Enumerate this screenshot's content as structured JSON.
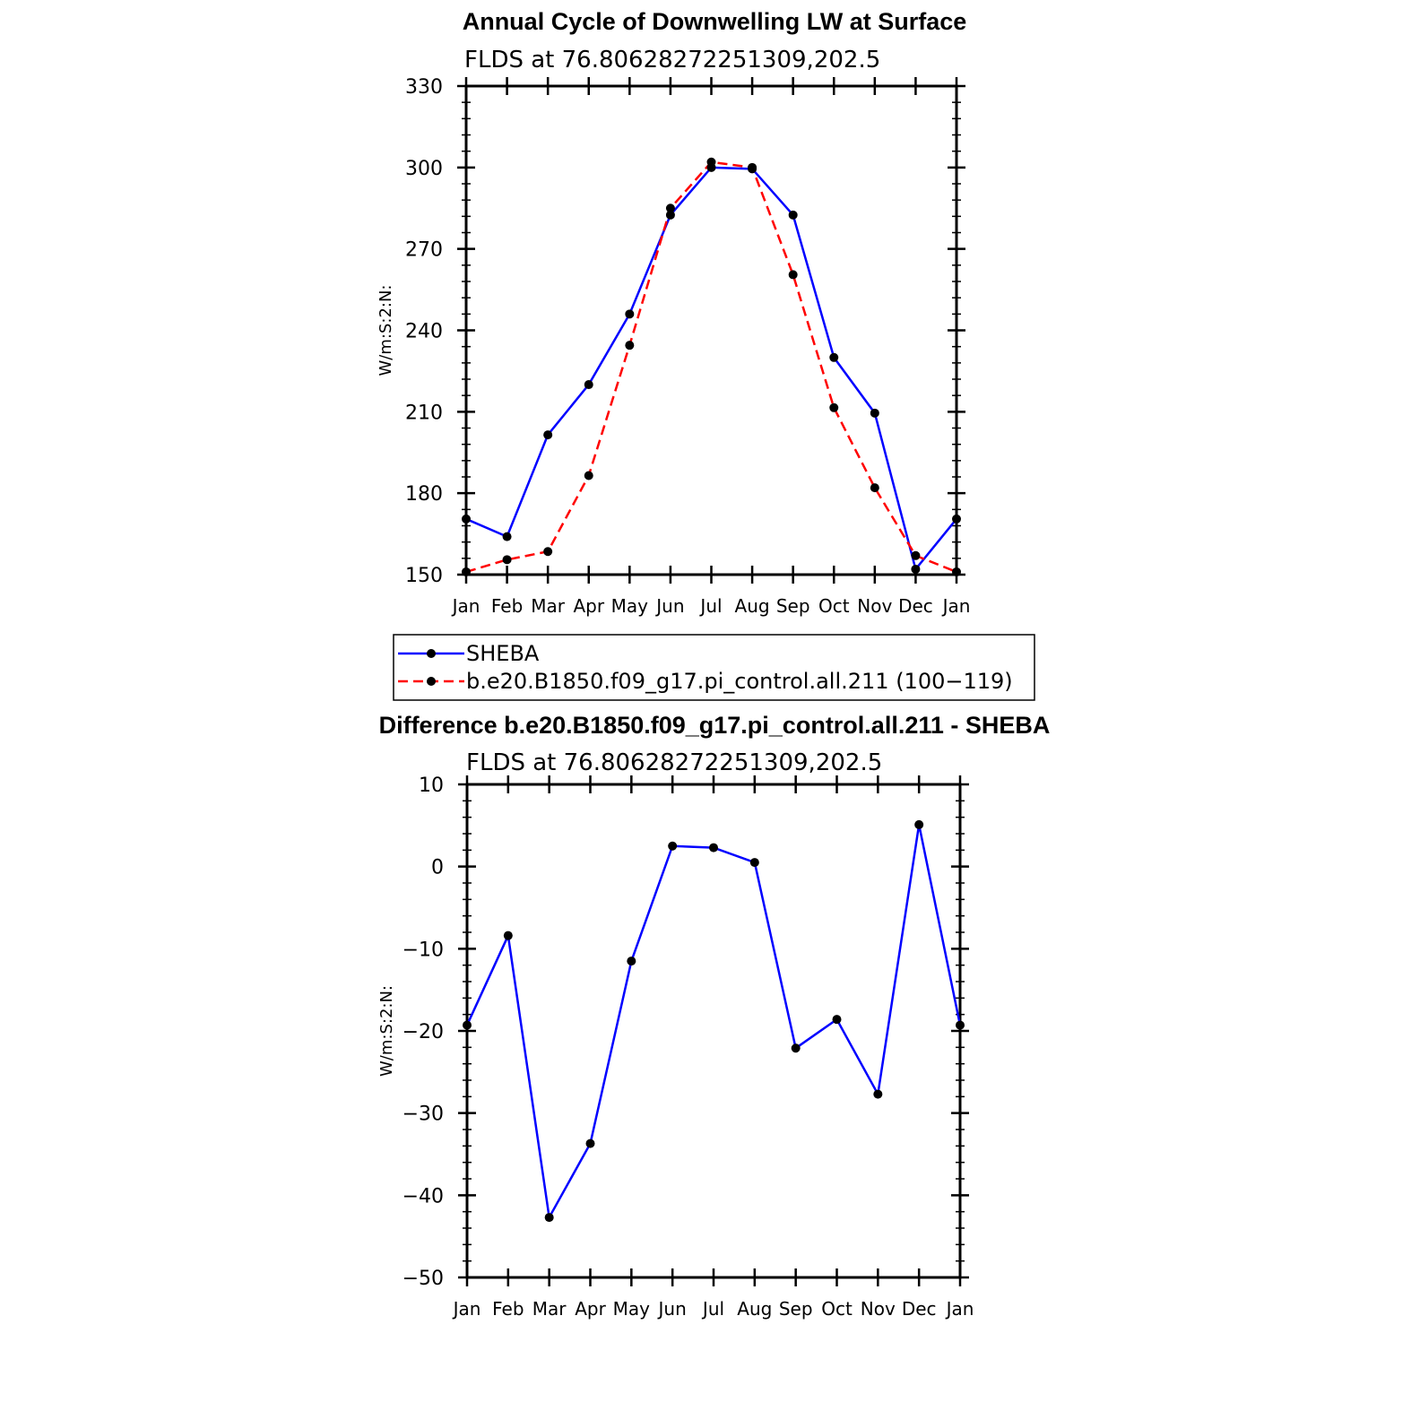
{
  "chart_data": [
    {
      "type": "line",
      "title": "Annual Cycle of Downwelling LW at Surface",
      "subtitle": "FLDS at 76.80628272251309,202.5",
      "ylabel": "W/m:S:2:N:",
      "xlabel": "",
      "categories": [
        "Jan",
        "Feb",
        "Mar",
        "Apr",
        "May",
        "Jun",
        "Jul",
        "Aug",
        "Sep",
        "Oct",
        "Nov",
        "Dec",
        "Jan"
      ],
      "ylim": [
        150,
        330
      ],
      "yticks": [
        "150",
        "180",
        "210",
        "240",
        "270",
        "300",
        "330"
      ],
      "series": [
        {
          "name": "SHEBA",
          "color": "#0000ff",
          "dash": "solid",
          "values": [
            170.5,
            164,
            201.5,
            220,
            246,
            282.5,
            300,
            299.5,
            282.5,
            230,
            209.5,
            152,
            170.5
          ]
        },
        {
          "name": "b.e20.B1850.f09_g17.pi_control.all.211 (100−119)",
          "color": "#ff0000",
          "dash": "dashed",
          "values": [
            151,
            155.5,
            158.5,
            186.5,
            234.5,
            285,
            302,
            300,
            260.5,
            211.5,
            182,
            157,
            151
          ]
        }
      ],
      "legend_position": "below"
    },
    {
      "type": "line",
      "title": "Difference b.e20.B1850.f09_g17.pi_control.all.211 - SHEBA",
      "subtitle": "FLDS at 76.80628272251309,202.5",
      "ylabel": "W/m:S:2:N:",
      "xlabel": "",
      "categories": [
        "Jan",
        "Feb",
        "Mar",
        "Apr",
        "May",
        "Jun",
        "Jul",
        "Aug",
        "Sep",
        "Oct",
        "Nov",
        "Dec",
        "Jan"
      ],
      "ylim": [
        -50,
        10
      ],
      "yticks": [
        "−50",
        "−40",
        "−30",
        "−20",
        "−10",
        "0",
        "10"
      ],
      "series": [
        {
          "color": "#0000ff",
          "dash": "solid",
          "values": [
            -19.3,
            -8.4,
            -42.7,
            -33.7,
            -11.5,
            2.5,
            2.3,
            0.5,
            -22.1,
            -18.6,
            -27.7,
            5.1,
            -19.3
          ]
        }
      ]
    }
  ]
}
